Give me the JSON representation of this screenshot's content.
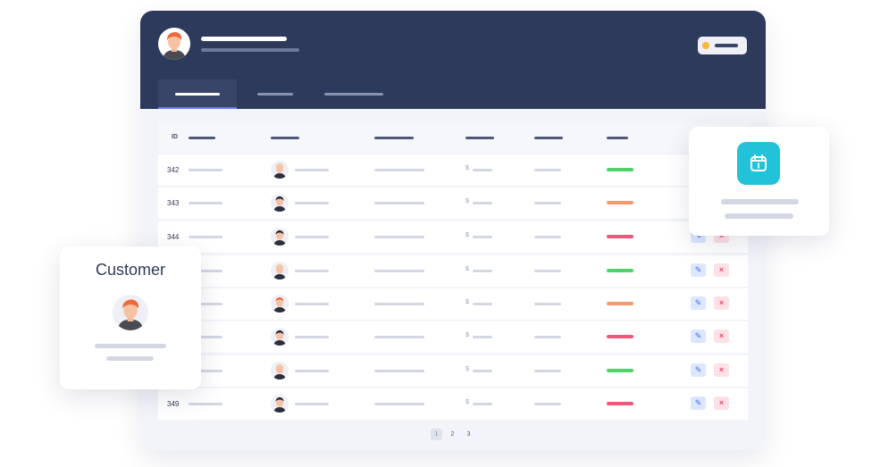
{
  "table": {
    "id_header": "ID",
    "currency_symbol": "$",
    "rows": [
      {
        "id": "342",
        "status": "green",
        "avatar": "face-hair-light"
      },
      {
        "id": "343",
        "status": "orange",
        "avatar": "face-hair-dark"
      },
      {
        "id": "344",
        "status": "red",
        "avatar": "face-bun"
      },
      {
        "id": "",
        "status": "green",
        "avatar": "face-hair-light"
      },
      {
        "id": "",
        "status": "orange",
        "avatar": "face-hair-red"
      },
      {
        "id": "",
        "status": "red",
        "avatar": "face-hair-dark"
      },
      {
        "id": "",
        "status": "green",
        "avatar": "face-hair-light"
      },
      {
        "id": "349",
        "status": "red",
        "avatar": "face-hair-dark"
      }
    ]
  },
  "pagination": {
    "pages": [
      "1",
      "2",
      "3"
    ],
    "active": "1"
  },
  "customer_card": {
    "title": "Customer"
  },
  "colors": {
    "header": "#2e3a5c",
    "status_green": "#4ed36b",
    "status_orange": "#f59a6b",
    "status_red": "#f0557a",
    "calendar_tile": "#22c2d8",
    "tab_active_indicator": "#6c7bff"
  },
  "icons": {
    "edit": "pencil-icon",
    "delete": "close-icon",
    "calendar": "calendar-icon",
    "status": "status-dot-icon"
  }
}
